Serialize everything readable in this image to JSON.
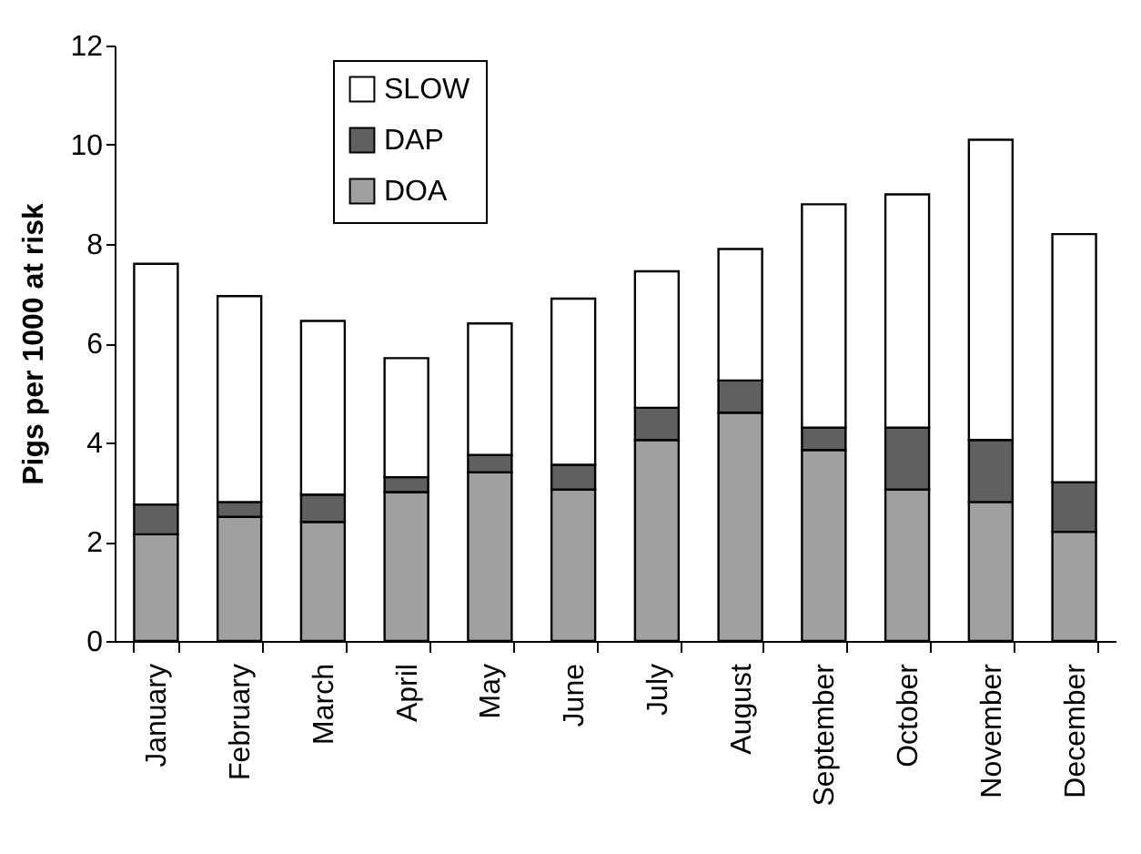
{
  "chart_data": {
    "type": "bar",
    "stacked": true,
    "ylabel": "Pigs per 1000 at risk",
    "categories": [
      "January",
      "February",
      "March",
      "April",
      "May",
      "June",
      "July",
      "August",
      "September",
      "October",
      "November",
      "December"
    ],
    "series": [
      {
        "name": "DOA",
        "color": "#a0a0a0",
        "values": [
          2.15,
          2.5,
          2.4,
          3.0,
          3.4,
          3.05,
          4.05,
          4.6,
          3.85,
          3.05,
          2.8,
          2.2
        ]
      },
      {
        "name": "DAP",
        "color": "#606060",
        "values": [
          0.6,
          0.3,
          0.55,
          0.3,
          0.35,
          0.5,
          0.65,
          0.65,
          0.45,
          1.25,
          1.25,
          1.0
        ]
      },
      {
        "name": "SLOW",
        "color": "#ffffff",
        "values": [
          4.85,
          4.15,
          3.5,
          2.4,
          2.65,
          3.35,
          2.75,
          2.65,
          4.5,
          4.7,
          6.05,
          5.0
        ]
      }
    ],
    "ylim": [
      0,
      12
    ],
    "yticks": [
      0,
      2,
      4,
      6,
      8,
      10,
      12
    ],
    "legend": "top left"
  }
}
